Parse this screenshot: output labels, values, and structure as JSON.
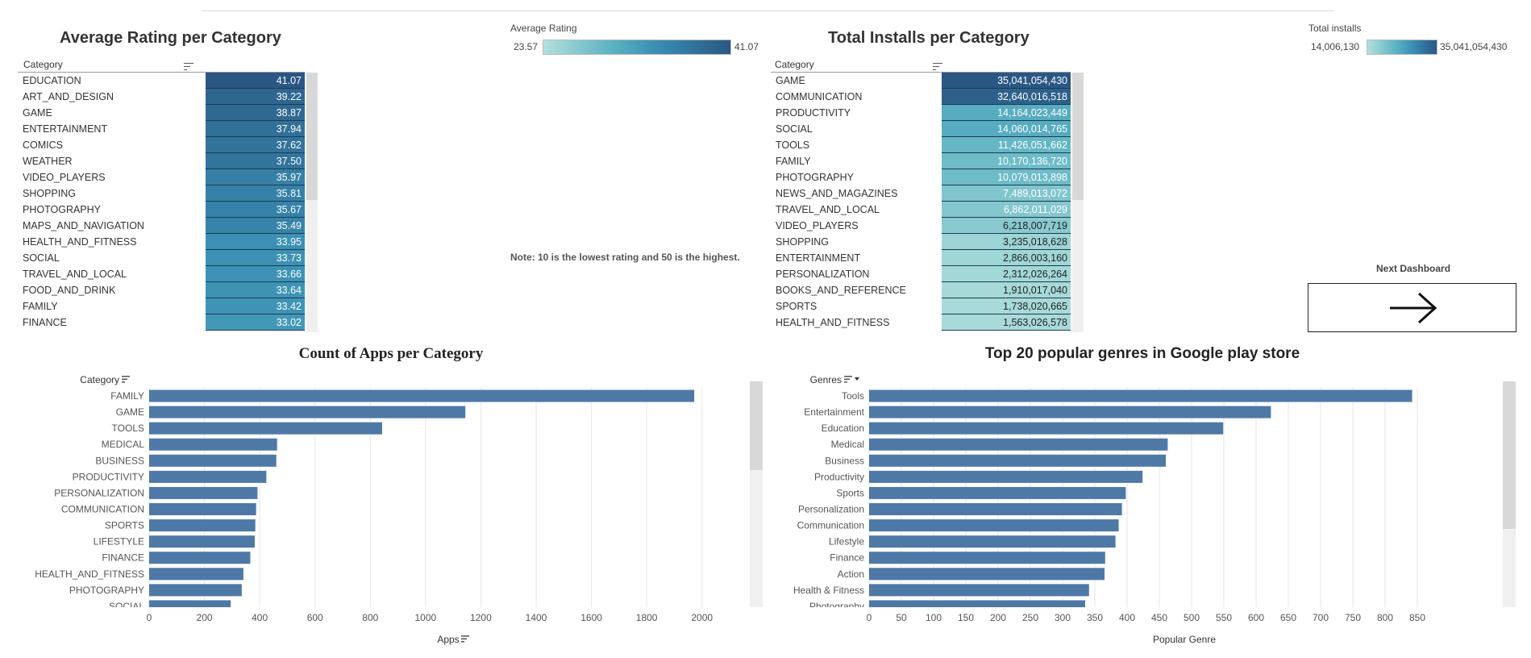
{
  "rating_panel": {
    "title": "Average Rating per Category",
    "category_header": "Category",
    "legend_title": "Average Rating",
    "legend_min": "23.57",
    "legend_max": "41.07",
    "note": "Note: 10 is the lowest rating and 50 is the highest."
  },
  "installs_panel": {
    "title": "Total Installs per Category",
    "category_header": "Category",
    "legend_title": "Total installs",
    "legend_min": "14,006,130",
    "legend_max": "35,041,054,430"
  },
  "next_dashboard": {
    "label": "Next Dashboard",
    "icon": "arrow-right-icon"
  },
  "colors": {
    "bar": "#4e79a7",
    "table_dark": "#2a5783",
    "table_light": "#b3e0dc"
  },
  "chart_data": [
    {
      "type": "table",
      "title": "Average Rating per Category",
      "xlabel": "Average Rating",
      "categories": [
        "EDUCATION",
        "ART_AND_DESIGN",
        "GAME",
        "ENTERTAINMENT",
        "COMICS",
        "WEATHER",
        "VIDEO_PLAYERS",
        "SHOPPING",
        "PHOTOGRAPHY",
        "MAPS_AND_NAVIGATION",
        "HEALTH_AND_FITNESS",
        "SOCIAL",
        "TRAVEL_AND_LOCAL",
        "FOOD_AND_DRINK",
        "FAMILY",
        "FINANCE"
      ],
      "values": [
        41.07,
        39.22,
        38.87,
        37.94,
        37.62,
        37.5,
        35.97,
        35.81,
        35.67,
        35.49,
        33.95,
        33.73,
        33.66,
        33.64,
        33.42,
        33.02
      ],
      "labels": [
        "41.07",
        "39.22",
        "38.87",
        "37.94",
        "37.62",
        "37.50",
        "35.97",
        "35.81",
        "35.67",
        "35.49",
        "33.95",
        "33.73",
        "33.66",
        "33.64",
        "33.42",
        "33.02"
      ],
      "color_range": [
        23.57,
        41.07
      ]
    },
    {
      "type": "table",
      "title": "Total Installs per Category",
      "xlabel": "Total installs",
      "categories": [
        "GAME",
        "COMMUNICATION",
        "PRODUCTIVITY",
        "SOCIAL",
        "TOOLS",
        "FAMILY",
        "PHOTOGRAPHY",
        "NEWS_AND_MAGAZINES",
        "TRAVEL_AND_LOCAL",
        "VIDEO_PLAYERS",
        "SHOPPING",
        "ENTERTAINMENT",
        "PERSONALIZATION",
        "BOOKS_AND_REFERENCE",
        "SPORTS",
        "HEALTH_AND_FITNESS"
      ],
      "values": [
        35041054430,
        32640016518,
        14164023449,
        14060014765,
        11426051662,
        10170136720,
        10079013898,
        7489013072,
        6862011029,
        6218007719,
        3235018628,
        2866003160,
        2312026264,
        1910017040,
        1738020665,
        1563026578
      ],
      "labels": [
        "35,041,054,430",
        "32,640,016,518",
        "14,164,023,449",
        "14,060,014,765",
        "11,426,051,662",
        "10,170,136,720",
        "10,079,013,898",
        "7,489,013,072",
        "6,862,011,029",
        "6,218,007,719",
        "3,235,018,628",
        "2,866,003,160",
        "2,312,026,264",
        "1,910,017,040",
        "1,738,020,665",
        "1,563,026,578"
      ],
      "color_range": [
        14006130,
        35041054430
      ]
    },
    {
      "type": "bar",
      "orientation": "horizontal",
      "title": "Count of Apps per Category",
      "ylabel": "Category",
      "xlabel": "Apps",
      "categories": [
        "FAMILY",
        "GAME",
        "TOOLS",
        "MEDICAL",
        "BUSINESS",
        "PRODUCTIVITY",
        "PERSONALIZATION",
        "COMMUNICATION",
        "SPORTS",
        "LIFESTYLE",
        "FINANCE",
        "HEALTH_AND_FITNESS",
        "PHOTOGRAPHY",
        "SOCIAL"
      ],
      "values": [
        1972,
        1144,
        843,
        463,
        460,
        424,
        392,
        387,
        384,
        382,
        366,
        341,
        335,
        295
      ],
      "xlim": [
        0,
        2100
      ],
      "ticks": [
        0,
        200,
        400,
        600,
        800,
        1000,
        1200,
        1400,
        1600,
        1800,
        2000
      ],
      "grid": true
    },
    {
      "type": "bar",
      "orientation": "horizontal",
      "title": "Top 20 popular genres in Google play store",
      "ylabel": "Genres",
      "xlabel": "Popular Genre",
      "categories": [
        "Tools",
        "Entertainment",
        "Education",
        "Medical",
        "Business",
        "Productivity",
        "Sports",
        "Personalization",
        "Communication",
        "Lifestyle",
        "Finance",
        "Action",
        "Health & Fitness",
        "Photography"
      ],
      "values": [
        842,
        623,
        549,
        463,
        460,
        424,
        398,
        392,
        387,
        382,
        366,
        365,
        341,
        335
      ],
      "xlim": [
        0,
        880
      ],
      "ticks": [
        0,
        50,
        100,
        150,
        200,
        250,
        300,
        350,
        400,
        450,
        500,
        550,
        600,
        650,
        700,
        750,
        800,
        850
      ],
      "grid": true
    }
  ]
}
